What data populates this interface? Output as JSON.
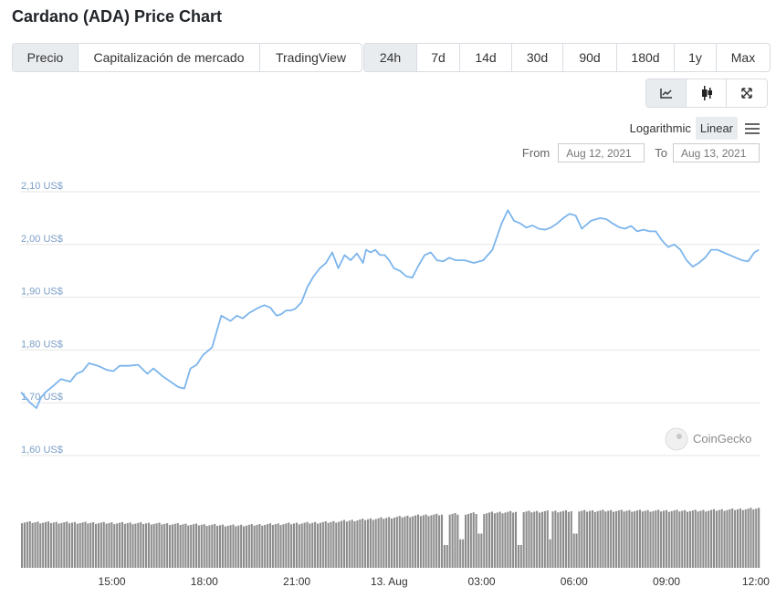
{
  "page": {
    "title": "Cardano (ADA) Price Chart"
  },
  "chart_types": [
    "Precio",
    "Capitalización de mercado",
    "TradingView"
  ],
  "active_chart_type": 0,
  "ranges": [
    "24h",
    "7d",
    "14d",
    "30d",
    "90d",
    "180d",
    "1y",
    "Max"
  ],
  "active_range": 0,
  "view_buttons": [
    {
      "name": "line-chart-icon",
      "active": true
    },
    {
      "name": "candlestick-icon",
      "active": false
    },
    {
      "name": "fullscreen-icon",
      "active": false
    }
  ],
  "scale": {
    "logarithmic": "Logarithmic",
    "linear": "Linear",
    "active": "linear"
  },
  "date_range": {
    "from_label": "From",
    "from_value": "Aug 12, 2021",
    "to_label": "To",
    "to_value": "Aug 13, 2021"
  },
  "watermark": "CoinGecko",
  "colors": {
    "line": "#7cb5ec",
    "volume": "#8c8c8c",
    "grid": "#e6e6e6",
    "ytick": "#7b9fc7"
  },
  "chart_data": {
    "type": "line",
    "title": "Cardano (ADA) Price Chart",
    "ylim": [
      1.6,
      2.1
    ],
    "xlim": [
      0,
      24
    ],
    "y_ticks": [
      {
        "value": 1.6,
        "label": "1,60 US$"
      },
      {
        "value": 1.7,
        "label": "1,70 US$"
      },
      {
        "value": 1.8,
        "label": "1,80 US$"
      },
      {
        "value": 1.9,
        "label": "1,90 US$"
      },
      {
        "value": 2.0,
        "label": "2,00 US$"
      },
      {
        "value": 2.1,
        "label": "2,10 US$"
      }
    ],
    "x_ticks": [
      {
        "value": 2.95,
        "label": "15:00"
      },
      {
        "value": 5.95,
        "label": "18:00"
      },
      {
        "value": 8.95,
        "label": "21:00"
      },
      {
        "value": 11.95,
        "label": "13. Aug"
      },
      {
        "value": 14.95,
        "label": "03:00"
      },
      {
        "value": 17.95,
        "label": "06:00"
      },
      {
        "value": 20.95,
        "label": "09:00"
      },
      {
        "value": 23.85,
        "label": "12:00"
      }
    ],
    "series": [
      {
        "x": [
          0,
          0.3,
          0.5,
          0.65,
          0.8,
          1,
          1.3,
          1.6,
          1.8,
          2.0,
          2.2,
          2.5,
          2.8,
          3.0,
          3.2,
          3.5,
          3.8,
          4.1,
          4.3,
          4.6,
          4.9,
          5.1,
          5.3,
          5.5,
          5.7,
          5.9,
          6.2,
          6.5,
          6.8,
          7.0,
          7.2,
          7.4,
          7.7,
          7.9,
          8.1,
          8.2,
          8.3,
          8.45,
          8.6,
          8.75,
          8.9,
          9.1,
          9.3,
          9.5,
          9.7,
          9.9,
          10.1,
          10.3,
          10.5,
          10.7,
          10.9,
          11.1,
          11.2,
          11.35,
          11.5,
          11.65,
          11.8,
          11.95,
          12.1,
          12.3,
          12.5,
          12.7,
          12.9,
          13.1,
          13.3,
          13.5,
          13.7,
          13.9,
          14.1,
          14.4,
          14.7,
          15.0,
          15.3,
          15.6,
          15.8,
          16.0,
          16.2,
          16.4,
          16.6,
          16.8,
          17.0,
          17.2,
          17.4,
          17.6,
          17.8,
          18.0,
          18.2,
          18.5,
          18.8,
          19.0,
          19.2,
          19.4,
          19.6,
          19.8,
          20.0,
          20.2,
          20.4,
          20.6,
          20.8,
          21.0,
          21.2,
          21.4,
          21.6,
          21.8,
          22.0,
          22.2,
          22.4,
          22.6,
          22.8,
          23.0,
          23.2,
          23.4,
          23.6,
          23.8,
          23.95
        ],
        "values": [
          1.72,
          1.7,
          1.69,
          1.71,
          1.72,
          1.73,
          1.745,
          1.74,
          1.755,
          1.76,
          1.775,
          1.77,
          1.762,
          1.76,
          1.77,
          1.77,
          1.772,
          1.755,
          1.765,
          1.75,
          1.738,
          1.73,
          1.727,
          1.765,
          1.772,
          1.79,
          1.805,
          1.865,
          1.855,
          1.865,
          1.86,
          1.87,
          1.88,
          1.885,
          1.88,
          1.872,
          1.865,
          1.868,
          1.875,
          1.875,
          1.878,
          1.89,
          1.92,
          1.94,
          1.955,
          1.965,
          1.985,
          1.955,
          1.98,
          1.97,
          1.983,
          1.965,
          1.99,
          1.985,
          1.99,
          1.98,
          1.98,
          1.97,
          1.955,
          1.95,
          1.94,
          1.937,
          1.96,
          1.98,
          1.985,
          1.97,
          1.968,
          1.975,
          1.97,
          1.97,
          1.965,
          1.97,
          1.99,
          2.04,
          2.065,
          2.045,
          2.04,
          2.032,
          2.036,
          2.03,
          2.028,
          2.032,
          2.04,
          2.05,
          2.058,
          2.055,
          2.03,
          2.045,
          2.05,
          2.048,
          2.04,
          2.033,
          2.03,
          2.035,
          2.025,
          2.028,
          2.025,
          2.025,
          2.008,
          1.995,
          2.0,
          1.99,
          1.97,
          1.958,
          1.965,
          1.975,
          1.99,
          1.99,
          1.985,
          1.98,
          1.975,
          1.97,
          1.968,
          1.985,
          1.99
        ]
      }
    ],
    "volume": {
      "count": 280,
      "base": 0.4,
      "profile": [
        [
          0,
          0.4
        ],
        [
          4,
          0.39
        ],
        [
          7,
          0.37
        ],
        [
          10,
          0.4
        ],
        [
          13,
          0.46
        ],
        [
          16,
          0.49
        ],
        [
          19,
          0.5
        ],
        [
          22,
          0.5
        ],
        [
          24,
          0.52
        ]
      ],
      "dips": [
        [
          13.8,
          0.2
        ],
        [
          14.3,
          0.25
        ],
        [
          14.9,
          0.3
        ],
        [
          16.2,
          0.2
        ],
        [
          17.2,
          0.25
        ],
        [
          18.0,
          0.3
        ]
      ]
    }
  }
}
